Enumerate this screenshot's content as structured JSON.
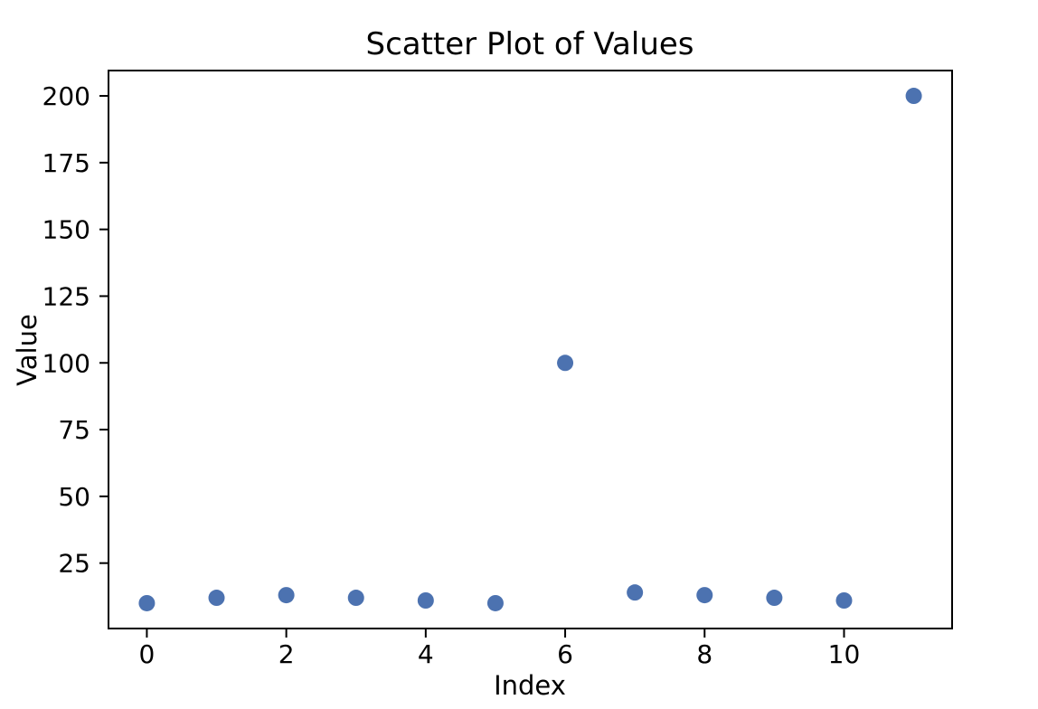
{
  "figure": {
    "background": "#ffffff"
  },
  "chart_data": {
    "type": "scatter",
    "title": "Scatter Plot of Values",
    "xlabel": "Index",
    "ylabel": "Value",
    "x": [
      0,
      1,
      2,
      3,
      4,
      5,
      6,
      7,
      8,
      9,
      10,
      11
    ],
    "values": [
      10,
      12,
      13,
      12,
      11,
      10,
      100,
      14,
      13,
      12,
      11,
      200
    ],
    "xlim": [
      -0.55,
      11.55
    ],
    "ylim": [
      0.5,
      209.5
    ],
    "xticks": [
      0,
      2,
      4,
      6,
      8,
      10
    ],
    "yticks": [
      25,
      50,
      75,
      100,
      125,
      150,
      175,
      200
    ],
    "grid": false,
    "marker_color": "#4c72b0",
    "marker_radius_px": 9,
    "axes_color": "#000000",
    "text_color": "#000000"
  }
}
